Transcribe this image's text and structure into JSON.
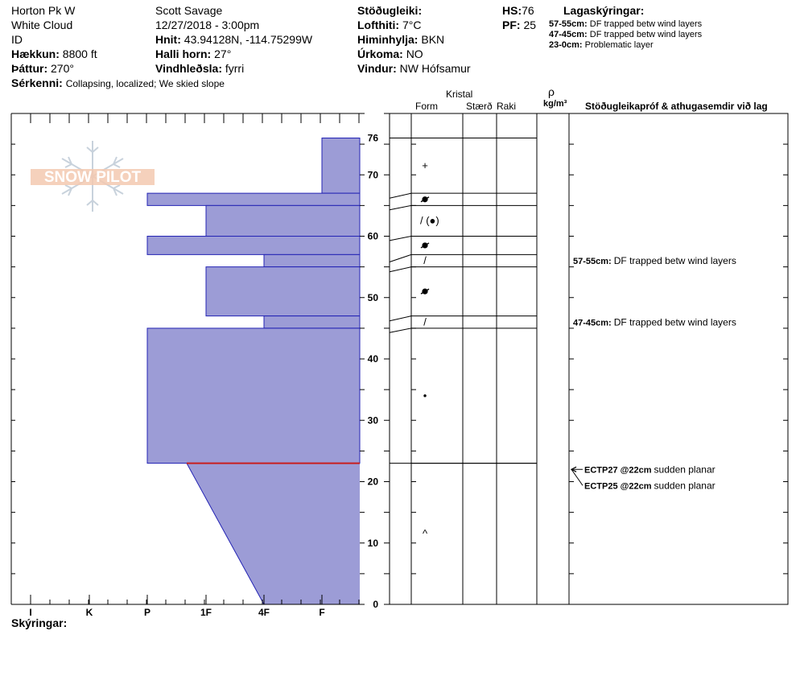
{
  "header": {
    "site": "Horton Pk W",
    "range": "White Cloud",
    "id_label": "ID",
    "elevation_label": "Hækkun:",
    "elevation": "8800 ft",
    "aspect_label": "Þáttur:",
    "aspect": "270°",
    "features_label": "Sérkenni:",
    "features": "Collapsing, localized;  We skied slope",
    "observer": "Scott Savage",
    "datetime": "12/27/2018 - 3:00pm",
    "coords_label": "Hnit:",
    "coords": "43.94128N, -114.75299W",
    "slope_label": "Halli horn:",
    "slope": "27°",
    "wind_loading_label": "Vindhleðsla:",
    "wind_loading": "fyrri",
    "stability_label": "Stöðugleiki:",
    "air_temp_label": "Lofthiti:",
    "air_temp": "7°C",
    "sky_label": "Himinhylja:",
    "sky": "BKN",
    "precip_label": "Úrkoma:",
    "precip": "NO",
    "wind_label": "Vindur:",
    "wind": "NW Hófsamur",
    "hs_label": "HS:",
    "hs": "76",
    "pf_label": "PF:",
    "pf": "25",
    "layer_notes_title": "Lagaskýringar:",
    "layer_notes": [
      {
        "range": "57-55cm:",
        "text": "DF trapped betw wind layers"
      },
      {
        "range": "47-45cm:",
        "text": "DF trapped betw wind layers"
      },
      {
        "range": "23-0cm:",
        "text": "Problematic layer"
      }
    ],
    "footer_label": "Skýringar:"
  },
  "logo": {
    "text": "SNOW PILOT"
  },
  "columns": {
    "crystal": "Kristal",
    "form": "Form",
    "size": "Stærð",
    "moisture": "Raki",
    "density_symbol": "ρ",
    "density_unit": "kg/m³",
    "tests_title": "Stöðugleikapróf & athugasemdir við lag"
  },
  "chart_data": {
    "type": "bar",
    "orientation": "horizontal",
    "description_axis": "hand hardness",
    "hardness_categories": [
      "I",
      "K",
      "P",
      "1F",
      "4F",
      "F"
    ],
    "ylim": [
      0,
      76
    ],
    "yticks": [
      0,
      10,
      20,
      30,
      40,
      50,
      60,
      70,
      76
    ],
    "layers": [
      {
        "top": 76,
        "bottom": 67,
        "hardness": "F",
        "form": "+"
      },
      {
        "top": 67,
        "bottom": 65,
        "hardness": "P",
        "form": "melt-freeze"
      },
      {
        "top": 65,
        "bottom": 60,
        "hardness": "1F",
        "form": "/ (●)"
      },
      {
        "top": 60,
        "bottom": 57,
        "hardness": "P",
        "form": "melt-freeze"
      },
      {
        "top": 57,
        "bottom": 55,
        "hardness": "4F",
        "form": "/"
      },
      {
        "top": 55,
        "bottom": 47,
        "hardness": "1F",
        "form": "melt-freeze"
      },
      {
        "top": 47,
        "bottom": 45,
        "hardness": "4F",
        "form": "/"
      },
      {
        "top": 45,
        "bottom": 23,
        "hardness": "P",
        "form": "•"
      },
      {
        "top": 23,
        "bottom": 0,
        "hardness_top": "1F+",
        "hardness_bottom": "4F",
        "form": "^"
      }
    ],
    "critical_layer": 23,
    "comments": [
      {
        "depth": 56,
        "range": "57-55cm:",
        "text": "DF trapped betw wind layers"
      },
      {
        "depth": 46,
        "range": "47-45cm:",
        "text": "DF trapped betw wind layers"
      }
    ],
    "tests": [
      {
        "depth": 22,
        "code": "ECTP27 @22cm",
        "text": "sudden planar"
      },
      {
        "depth": 22,
        "code": "ECTP25 @22cm",
        "text": "sudden planar"
      }
    ]
  }
}
